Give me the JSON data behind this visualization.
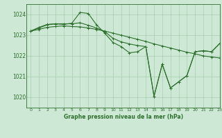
{
  "background_color": "#cde8d4",
  "grid_color": "#a8cdb0",
  "line_color": "#2d6e2d",
  "title": "Graphe pression niveau de la mer (hPa)",
  "xlim": [
    -0.5,
    23
  ],
  "ylim": [
    1019.5,
    1024.5
  ],
  "yticks": [
    1020,
    1021,
    1022,
    1023,
    1024
  ],
  "xticks": [
    0,
    1,
    2,
    3,
    4,
    5,
    6,
    7,
    8,
    9,
    10,
    11,
    12,
    13,
    14,
    15,
    16,
    17,
    18,
    19,
    20,
    21,
    22,
    23
  ],
  "series": [
    {
      "x": [
        0,
        1,
        2,
        3,
        4,
        5,
        6,
        7,
        8,
        9,
        10,
        11,
        12,
        13,
        14,
        15,
        16,
        17,
        18,
        19,
        20,
        21,
        22,
        23
      ],
      "y": [
        1023.2,
        1023.28,
        1023.38,
        1023.42,
        1023.45,
        1023.42,
        1023.4,
        1023.35,
        1023.28,
        1023.2,
        1023.1,
        1023.0,
        1022.9,
        1022.8,
        1022.7,
        1022.58,
        1022.48,
        1022.38,
        1022.28,
        1022.18,
        1022.1,
        1022.0,
        1021.95,
        1021.9
      ]
    },
    {
      "x": [
        0,
        1,
        2,
        3,
        4,
        5,
        6,
        7,
        8,
        9,
        10,
        11,
        12,
        13,
        14,
        15,
        16,
        17,
        18,
        19,
        20,
        21,
        22,
        23
      ],
      "y": [
        1023.2,
        1023.38,
        1023.52,
        1023.55,
        1023.55,
        1023.55,
        1023.6,
        1023.48,
        1023.35,
        1023.18,
        1022.85,
        1022.68,
        1022.58,
        1022.5,
        1022.45,
        1020.05,
        1021.6,
        1020.45,
        1020.75,
        1021.05,
        1022.2,
        1022.25,
        1022.2,
        1022.6
      ]
    },
    {
      "x": [
        0,
        1,
        2,
        3,
        4,
        5,
        6,
        7,
        8,
        9,
        10,
        11,
        12,
        13,
        14,
        15,
        16,
        17,
        18,
        19,
        20,
        21,
        22,
        23
      ],
      "y": [
        1023.2,
        1023.35,
        1023.5,
        1023.55,
        1023.52,
        1023.58,
        1024.1,
        1024.05,
        1023.5,
        1023.1,
        1022.65,
        1022.45,
        1022.15,
        1022.2,
        1022.45,
        1020.05,
        1021.6,
        1020.45,
        1020.75,
        1021.05,
        1022.2,
        1022.25,
        1022.2,
        1022.6
      ]
    }
  ]
}
